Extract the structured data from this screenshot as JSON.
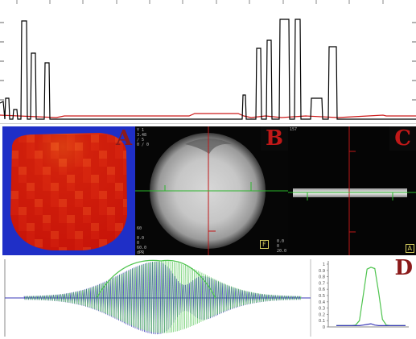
{
  "panels": {
    "a": {
      "letter": "A"
    },
    "b": {
      "letter": "B",
      "readout_top": "Y 1\n3.48\n/ 5\n0 / 0",
      "readout_mid": "60",
      "readout_bottom": "0.0\n0\n60.0\ndPR",
      "readout_right": "0.0\n0\n20.0",
      "corner_tag": "F"
    },
    "c": {
      "letter": "C",
      "readout_top": "157",
      "corner_tag": "A"
    },
    "d": {
      "letter": "D",
      "y_ticks": [
        "1",
        "0.9",
        "0.8",
        "0.7",
        "0.6",
        "0.5",
        "0.4",
        "0.3",
        "0.2",
        "0.1",
        "0"
      ]
    }
  },
  "colors": {
    "profile_black": "#000000",
    "profile_red": "#cc1a1a",
    "map_background": "#1f2fc7",
    "map_red": "#d11a0a",
    "crosshair_red": "#c01818",
    "crosshair_green": "#2bb52b",
    "trace_blue": "#3a3ab8",
    "trace_green": "#4fc44f",
    "letter": "#8b1a1a"
  },
  "chart_data": {
    "type": "line",
    "y_ticks": [
      1,
      0.9,
      0.8,
      0.7,
      0.6,
      0.5,
      0.4,
      0.3,
      0.2,
      0.1,
      0
    ],
    "series": [
      {
        "values": [
          0.02,
          0.02,
          0.02,
          0.02,
          0.02,
          0.03,
          0.1,
          0.5,
          0.92,
          0.95,
          0.93,
          0.55,
          0.12,
          0.03,
          0.02,
          0.02,
          0.02,
          0.02,
          0.02
        ]
      },
      {
        "values": [
          0.02,
          0.02,
          0.02,
          0.02,
          0.02,
          0.02,
          0.02,
          0.03,
          0.04,
          0.05,
          0.03,
          0.02,
          0.02,
          0.02,
          0.02,
          0.02,
          0.02,
          0.02,
          0.02
        ]
      }
    ],
    "ylim": [
      0,
      1
    ]
  }
}
